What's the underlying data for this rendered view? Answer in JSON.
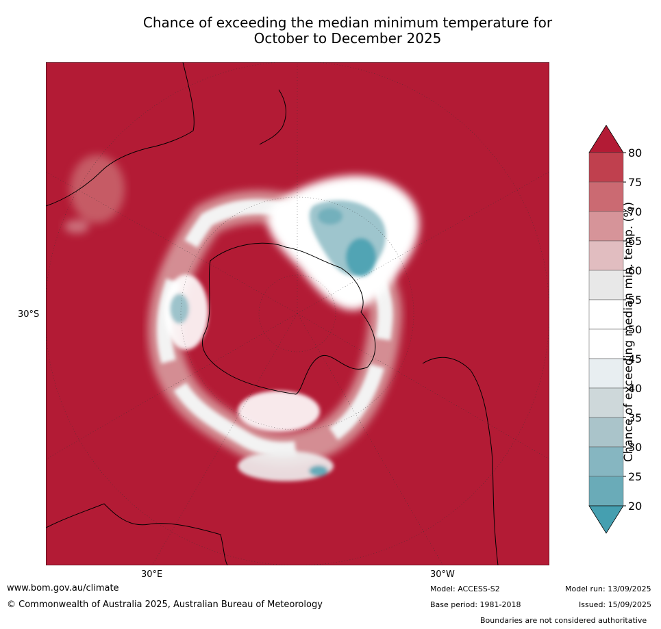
{
  "title": {
    "line1": "Chance of exceeding the median minimum temperature for",
    "line2": "October to December 2025"
  },
  "map": {
    "projection": "south-polar-stereographic",
    "lat_label": "30°S",
    "lon_labels": [
      "30°E",
      "30°W"
    ],
    "background_color": "#b31b35",
    "land_color": "#b31b35",
    "regions": [
      {
        "name": "east-pacific-warm-anomaly-cool-core",
        "probability_range": "20-55"
      },
      {
        "name": "ring-around-antarctica",
        "probability_range": "45-65"
      },
      {
        "name": "antarctic-interior",
        "probability_range": ">80"
      }
    ]
  },
  "colorbar": {
    "title": "Chance of exceeding median min. temp. (%)",
    "ticks": [
      "80",
      "75",
      "70",
      "65",
      "60",
      "55",
      "50",
      "45",
      "40",
      "35",
      "30",
      "25",
      "20"
    ],
    "colors": [
      "#b31b35",
      "#c0404e",
      "#cb6a72",
      "#d69499",
      "#e1bdc0",
      "#e8e8e8",
      "#ffffff",
      "#ffffff",
      "#e8eef1",
      "#ced8da",
      "#aac4ca",
      "#86b6c1",
      "#6aabb8",
      "#459fb0"
    ]
  },
  "footer": {
    "website": "www.bom.gov.au/climate",
    "copyright": "© Commonwealth of Australia 2025, Australian Bureau of Meteorology",
    "model": "Model: ACCESS-S2",
    "base_period": "Base period: 1981-2018",
    "model_run": "Model run: 13/09/2025",
    "issued": "Issued: 15/09/2025",
    "disclaimer": "Boundaries are not considered authoritative"
  }
}
